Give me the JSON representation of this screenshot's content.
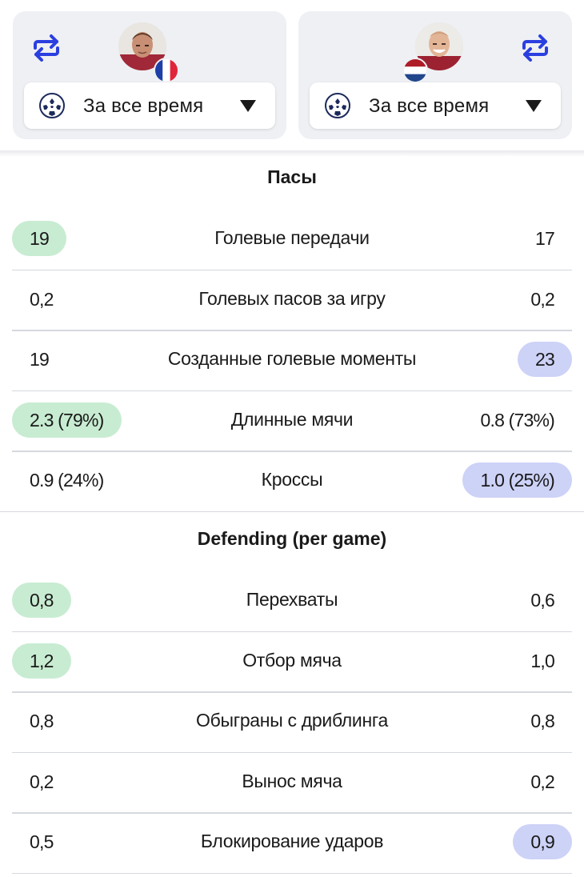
{
  "colors": {
    "card_bg": "#eef0f4",
    "left_best": "#c8ecd2",
    "right_best": "#cdd2f7",
    "swap_icon": "#2b3fe0",
    "divider": "#d5d8dd"
  },
  "players": [
    {
      "side": "left",
      "avatar": "player-avatar",
      "flag": "france-flag",
      "filter": {
        "icon": "champions-league-ball-icon",
        "label": "За все время"
      }
    },
    {
      "side": "right",
      "avatar": "player-avatar",
      "flag": "netherlands-flag",
      "filter": {
        "icon": "champions-league-ball-icon",
        "label": "За все время"
      }
    }
  ],
  "sections": [
    {
      "title": "Пасы",
      "rows": [
        {
          "label": "Голевые передачи",
          "left": "19",
          "right": "17",
          "best": "left"
        },
        {
          "label": "Голевых пасов за игру",
          "left": "0,2",
          "right": "0,2",
          "best": "none"
        },
        {
          "label": "Созданные голевые моменты",
          "left": "19",
          "right": "23",
          "best": "right"
        },
        {
          "label": "Длинные мячи",
          "left": "2.3 (79%)",
          "right": "0.8 (73%)",
          "best": "left"
        },
        {
          "label": "Кроссы",
          "left": "0.9 (24%)",
          "right": "1.0 (25%)",
          "best": "right"
        }
      ]
    },
    {
      "title": "Defending (per game)",
      "rows": [
        {
          "label": "Перехваты",
          "left": "0,8",
          "right": "0,6",
          "best": "left"
        },
        {
          "label": "Отбор мяча",
          "left": "1,2",
          "right": "1,0",
          "best": "left"
        },
        {
          "label": "Обыграны с дриблинга",
          "left": "0,8",
          "right": "0,8",
          "best": "none"
        },
        {
          "label": "Вынос мяча",
          "left": "0,2",
          "right": "0,2",
          "best": "none"
        },
        {
          "label": "Блокирование ударов",
          "left": "0,5",
          "right": "0,9",
          "best": "right"
        }
      ]
    }
  ]
}
